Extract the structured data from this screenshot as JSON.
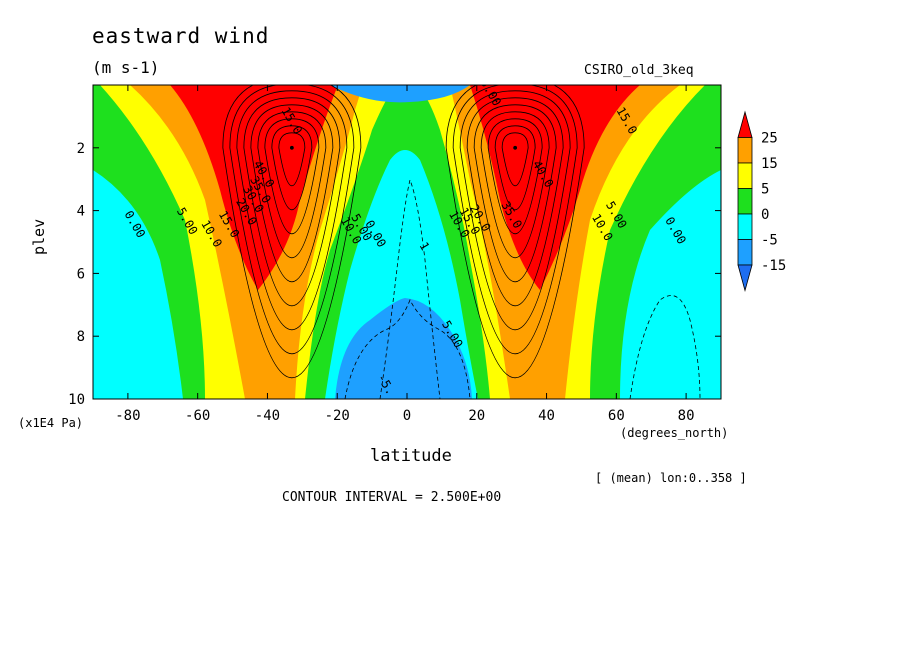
{
  "title": "eastward wind",
  "units": "(m s-1)",
  "dataset": "CSIRO_old_3keq",
  "xlabel": "latitude",
  "ylabel": "plev",
  "yaxis_units": "(x1E4 Pa)",
  "xaxis_units": "(degrees_north)",
  "average_note": "[ (mean) lon:0..358 ]",
  "contour_interval": "CONTOUR INTERVAL = 2.500E+00",
  "colors": {
    "lt_neg15": "#1e6ef0",
    "neg15_neg5": "#1ea0ff",
    "neg5_0": "#00ffff",
    "0_5": "#1ee01e",
    "5_15": "#ffff00",
    "15_25": "#ffa000",
    "gt_25": "#ff0000"
  },
  "chart_data": {
    "type": "contour",
    "x": {
      "label": "latitude",
      "range": [
        -90,
        90
      ],
      "ticks": [
        -80,
        -60,
        -40,
        -20,
        0,
        20,
        40,
        60,
        80
      ]
    },
    "y": {
      "label": "plev",
      "range": [
        10,
        0
      ],
      "ticks": [
        2,
        4,
        6,
        8,
        10
      ],
      "inverted": true
    },
    "colorbar": {
      "levels": [
        -15,
        -5,
        0,
        5,
        15,
        25
      ],
      "labels": [
        "25",
        "15",
        "5",
        "0",
        "-5",
        "-15"
      ]
    },
    "contour_labels": [
      {
        "text": "15.0",
        "lat": -34,
        "plev": 1.2
      },
      {
        "text": "40.0",
        "lat": -42,
        "plev": 2.9
      },
      {
        "text": "35.0",
        "lat": -43,
        "plev": 3.4
      },
      {
        "text": "30.0",
        "lat": -45,
        "plev": 3.7
      },
      {
        "text": "20.0",
        "lat": -47,
        "plev": 4.1
      },
      {
        "text": "15.0",
        "lat": -52,
        "plev": 4.5
      },
      {
        "text": "10.0",
        "lat": -57,
        "plev": 4.8
      },
      {
        "text": "5.00",
        "lat": -64,
        "plev": 4.4
      },
      {
        "text": "0.00",
        "lat": -79,
        "plev": 4.5
      },
      {
        "text": "10.0",
        "lat": -17,
        "plev": 4.7
      },
      {
        "text": "5.00",
        "lat": -14,
        "plev": 4.6
      },
      {
        "text": "0.00",
        "lat": -10,
        "plev": 4.8
      },
      {
        "text": "1",
        "lat": 4,
        "plev": 5.2
      },
      {
        "text": "10.0",
        "lat": 14,
        "plev": 4.5
      },
      {
        "text": "15.0",
        "lat": 17,
        "plev": 4.4
      },
      {
        "text": "20.0",
        "lat": 20,
        "plev": 4.3
      },
      {
        "text": "35.0",
        "lat": 29,
        "plev": 4.2
      },
      {
        "text": "40.0",
        "lat": 38,
        "plev": 2.9
      },
      {
        "text": "15.0",
        "lat": 62,
        "plev": 1.2
      },
      {
        "text": "10.0",
        "lat": 55,
        "plev": 4.6
      },
      {
        "text": "5.00",
        "lat": 59,
        "plev": 4.2
      },
      {
        "text": "0.00",
        "lat": 76,
        "plev": 4.7
      },
      {
        "text": "5.00",
        "lat": 12,
        "plev": 8.0
      },
      {
        "text": "0.00",
        "lat": 23,
        "plev": 0.3
      },
      {
        "text": "-5.",
        "lat": -7,
        "plev": 9.6
      }
    ],
    "jets": [
      {
        "lat": -33,
        "plev": 2.0,
        "max_label": "40.0"
      },
      {
        "lat": 31,
        "plev": 2.0,
        "max_label": "40.0"
      }
    ],
    "grid": false
  }
}
